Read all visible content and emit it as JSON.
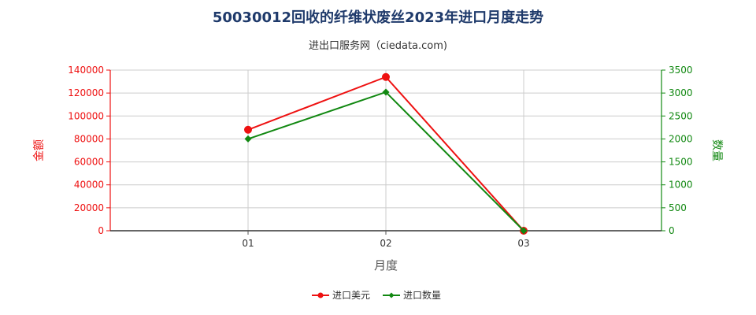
{
  "chart_data": {
    "type": "line",
    "title": "50030012回收的纤维状废丝2023年进口月度走势",
    "subtitle": "进出口服务网（ciedata.com)",
    "xlabel": "月度",
    "ylabel_left": "金额",
    "ylabel_right": "数量",
    "categories": [
      "01",
      "02",
      "03"
    ],
    "ylim_left": [
      0,
      140000
    ],
    "ylim_right": [
      0,
      3500
    ],
    "yticks_left": [
      "0",
      "20000",
      "40000",
      "60000",
      "80000",
      "100000",
      "120000",
      "140000"
    ],
    "yticks_right": [
      "0",
      "500",
      "1000",
      "1500",
      "2000",
      "2500",
      "3000",
      "3500"
    ],
    "grid": true,
    "legend_position": "bottom",
    "series": [
      {
        "name": "进口美元",
        "axis": "left",
        "color": "#ee1111",
        "marker": "circle",
        "values": [
          88000,
          134000,
          0
        ]
      },
      {
        "name": "进口数量",
        "axis": "right",
        "color": "#118811",
        "marker": "diamond",
        "values": [
          2000,
          3020,
          0
        ]
      }
    ]
  }
}
